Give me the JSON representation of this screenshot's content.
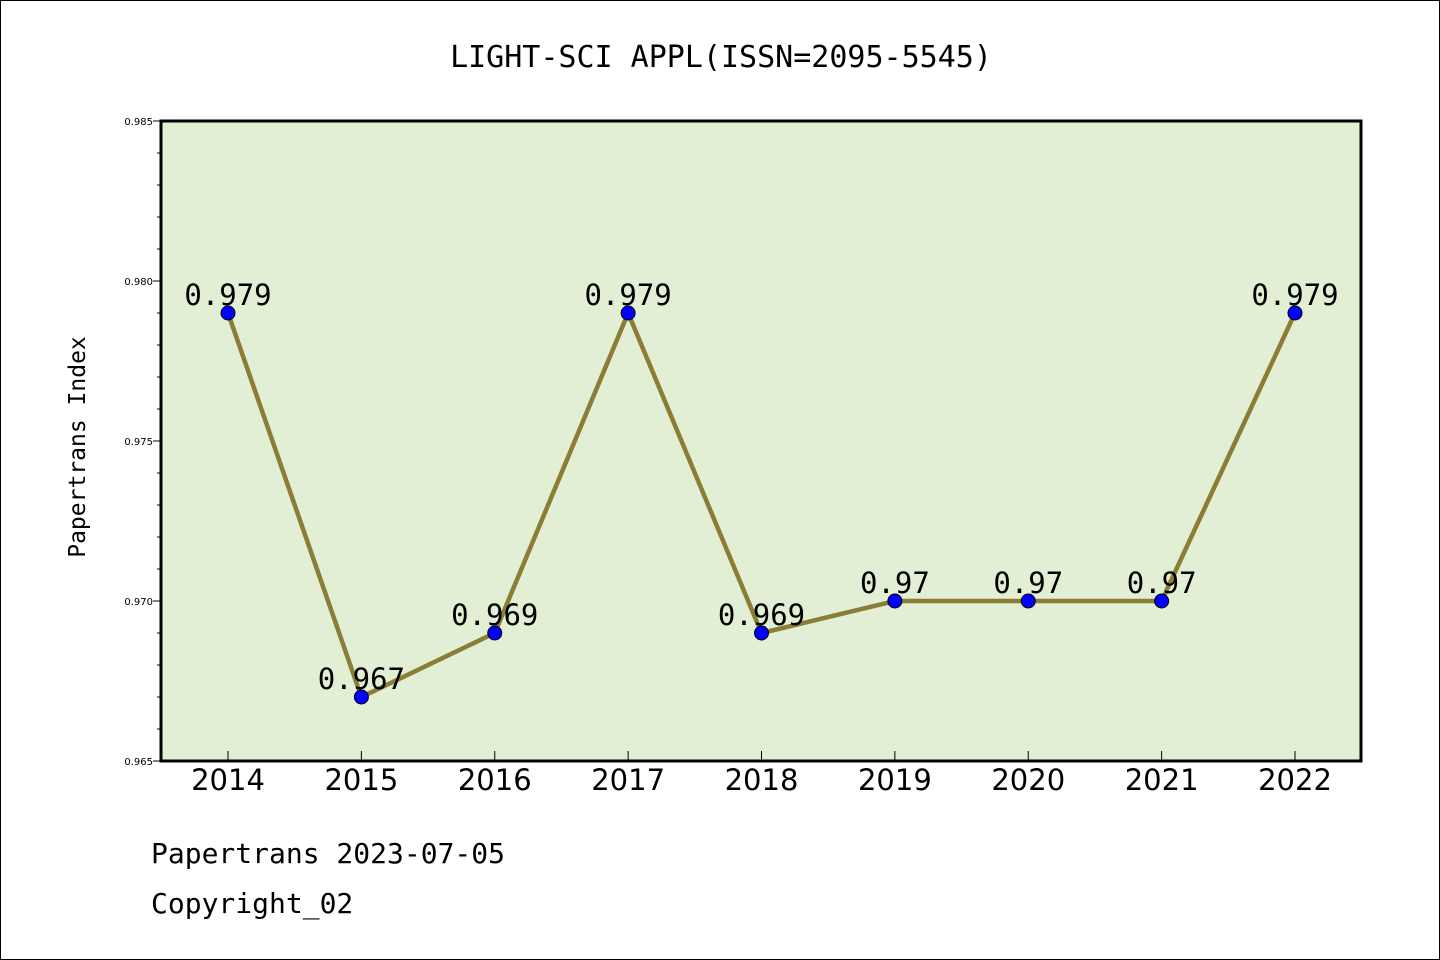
{
  "chart_data": {
    "type": "line",
    "title": "LIGHT-SCI APPL(ISSN=2095-5545)",
    "ylabel": "Papertrans Index",
    "xlabel": "",
    "x": [
      "2014",
      "2015",
      "2016",
      "2017",
      "2018",
      "2019",
      "2020",
      "2021",
      "2022"
    ],
    "values": [
      0.979,
      0.967,
      0.969,
      0.979,
      0.969,
      0.97,
      0.97,
      0.97,
      0.979
    ],
    "data_labels": [
      "0.979",
      "0.967",
      "0.969",
      "0.979",
      "0.969",
      "0.97",
      "0.97",
      "0.97",
      "0.979"
    ],
    "ylim": [
      0.965,
      0.985
    ],
    "yticks": [
      "0.965",
      "0.970",
      "0.975",
      "0.980",
      "0.985"
    ],
    "grid": false,
    "colors": {
      "plot_background": "#e2efd5",
      "line": "#8b7d35",
      "marker": "#0000ff"
    }
  },
  "footer": {
    "line1": "Papertrans 2023-07-05",
    "line2": "Copyright_02"
  }
}
